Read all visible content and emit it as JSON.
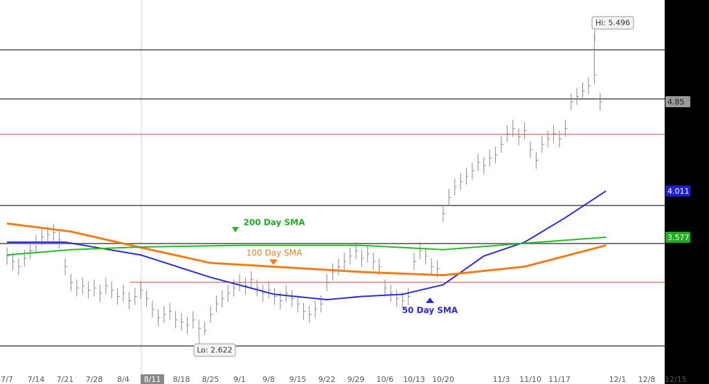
{
  "chart_data": {
    "type": "ohlc",
    "high": [
      3.48,
      3.43,
      3.38,
      3.46,
      3.53,
      3.6,
      3.66,
      3.68,
      3.7,
      3.63,
      3.38,
      3.23,
      3.18,
      3.2,
      3.16,
      3.18,
      3.13,
      3.2,
      3.16,
      3.1,
      3.13,
      3.06,
      3.1,
      3.16,
      3.08,
      2.98,
      2.9,
      2.93,
      2.96,
      2.88,
      2.86,
      2.83,
      2.88,
      2.8,
      2.78,
      2.93,
      3.03,
      3.08,
      3.13,
      3.18,
      3.23,
      3.2,
      3.26,
      3.18,
      3.13,
      3.16,
      3.1,
      3.06,
      3.13,
      3.08,
      3.03,
      2.96,
      2.93,
      2.98,
      3.03,
      3.23,
      3.33,
      3.38,
      3.43,
      3.48,
      3.53,
      3.46,
      3.5,
      3.43,
      3.38,
      3.18,
      3.13,
      3.08,
      3.06,
      3.1,
      3.43,
      3.53,
      3.48,
      3.38,
      3.36,
      3.88,
      4.03,
      4.13,
      4.18,
      4.23,
      4.28,
      4.36,
      4.33,
      4.4,
      4.43,
      4.53,
      4.63,
      4.68,
      4.6,
      4.66,
      4.48,
      4.38,
      4.53,
      4.58,
      4.63,
      4.58,
      4.68,
      4.93,
      4.98,
      5.03,
      5.08,
      5.496,
      4.93
    ],
    "low": [
      3.32,
      3.27,
      3.22,
      3.3,
      3.37,
      3.44,
      3.5,
      3.52,
      3.54,
      3.47,
      3.22,
      3.07,
      3.02,
      3.04,
      3.0,
      3.02,
      2.97,
      3.04,
      3.0,
      2.94,
      2.97,
      2.9,
      2.94,
      3.0,
      2.92,
      2.82,
      2.74,
      2.77,
      2.8,
      2.72,
      2.7,
      2.67,
      2.72,
      2.622,
      2.66,
      2.77,
      2.87,
      2.92,
      2.97,
      3.02,
      3.07,
      3.04,
      3.1,
      3.02,
      2.97,
      3.0,
      2.94,
      2.9,
      2.97,
      2.92,
      2.87,
      2.8,
      2.77,
      2.82,
      2.87,
      3.07,
      3.17,
      3.22,
      3.27,
      3.32,
      3.37,
      3.3,
      3.34,
      3.27,
      3.22,
      3.02,
      2.97,
      2.92,
      2.9,
      2.94,
      3.27,
      3.37,
      3.32,
      3.22,
      3.2,
      3.72,
      3.87,
      3.97,
      4.02,
      4.07,
      4.12,
      4.2,
      4.17,
      4.24,
      4.27,
      4.37,
      4.47,
      4.52,
      4.44,
      4.5,
      4.32,
      4.22,
      4.37,
      4.42,
      4.47,
      4.42,
      4.52,
      4.77,
      4.82,
      4.87,
      4.92,
      5.02,
      4.77
    ],
    "close": [
      3.4,
      3.35,
      3.3,
      3.38,
      3.45,
      3.52,
      3.58,
      3.6,
      3.62,
      3.55,
      3.3,
      3.15,
      3.1,
      3.12,
      3.08,
      3.1,
      3.05,
      3.12,
      3.08,
      3.02,
      3.05,
      2.98,
      3.02,
      3.08,
      3.0,
      2.9,
      2.82,
      2.85,
      2.88,
      2.8,
      2.78,
      2.75,
      2.8,
      2.72,
      2.7,
      2.85,
      2.95,
      3.0,
      3.05,
      3.1,
      3.15,
      3.12,
      3.18,
      3.1,
      3.05,
      3.08,
      3.02,
      2.98,
      3.05,
      3.0,
      2.95,
      2.88,
      2.85,
      2.9,
      2.95,
      3.15,
      3.25,
      3.3,
      3.35,
      3.4,
      3.45,
      3.38,
      3.42,
      3.35,
      3.3,
      3.1,
      3.05,
      3.0,
      2.98,
      3.02,
      3.35,
      3.45,
      3.4,
      3.3,
      3.28,
      3.8,
      3.95,
      4.05,
      4.1,
      4.15,
      4.2,
      4.28,
      4.25,
      4.32,
      4.35,
      4.45,
      4.55,
      4.6,
      4.52,
      4.58,
      4.4,
      4.3,
      4.45,
      4.5,
      4.55,
      4.5,
      4.6,
      4.85,
      4.9,
      4.95,
      5.0,
      5.1,
      4.85
    ],
    "bar_color": "#888888",
    "series": [
      {
        "name": "50 Day SMA",
        "color": "#2a2ad6",
        "x": [
          0,
          10,
          23,
          35,
          46,
          55,
          61,
          68,
          75,
          82,
          89,
          96,
          103
        ],
        "values": [
          3.53,
          3.53,
          3.41,
          3.2,
          3.04,
          2.99,
          3.02,
          3.04,
          3.13,
          3.4,
          3.53,
          3.76,
          4.011
        ]
      },
      {
        "name": "100  Day SMA",
        "color": "#f07d1a",
        "x": [
          0,
          11,
          23,
          35,
          49,
          61,
          75,
          89,
          103
        ],
        "values": [
          3.706,
          3.63,
          3.48,
          3.335,
          3.29,
          3.25,
          3.22,
          3.3,
          3.5
        ]
      },
      {
        "name": "200 Day SMA",
        "color": "#22bb22",
        "x": [
          0,
          11,
          23,
          40,
          61,
          75,
          89,
          103
        ],
        "values": [
          3.41,
          3.46,
          3.485,
          3.5,
          3.5,
          3.46,
          3.52,
          3.577
        ]
      }
    ],
    "levels": [
      {
        "value": 5.338,
        "color": "#777777"
      },
      {
        "value": 4.876,
        "color": "#777777"
      },
      {
        "value": 4.544,
        "color": "#d04040"
      },
      {
        "value": 3.875,
        "color": "#777777"
      },
      {
        "value": 3.517,
        "color": "#777777"
      },
      {
        "value": 3.153,
        "color": "#d04040"
      },
      {
        "value": 2.555,
        "color": "#777777"
      }
    ],
    "price_tags": [
      {
        "value": 4.85,
        "color": "#9a9a9a"
      },
      {
        "value": 4.011,
        "color": "#2020d0"
      },
      {
        "value": 3.577,
        "color": "#22aa22"
      }
    ],
    "annotations": [
      "Hi: 5.496",
      "Lo: 2.622"
    ],
    "xlim": [
      -1.2,
      113.1
    ],
    "ylim": [
      2.36,
      5.806
    ],
    "xticks": [
      {
        "value": 0,
        "label": "7/7"
      },
      {
        "value": 5,
        "label": "7/14"
      },
      {
        "value": 10,
        "label": "7/21"
      },
      {
        "value": 15,
        "label": "7/28"
      },
      {
        "value": 20,
        "label": "8/4"
      },
      {
        "value": 25,
        "label": "8/11"
      },
      {
        "value": 30,
        "label": "8/18"
      },
      {
        "value": 35,
        "label": "8/25"
      },
      {
        "value": 40,
        "label": "9/1"
      },
      {
        "value": 45,
        "label": "9/8"
      },
      {
        "value": 50,
        "label": "9/15"
      },
      {
        "value": 55,
        "label": "9/22"
      },
      {
        "value": 60,
        "label": "9/29"
      },
      {
        "value": 65,
        "label": "10/6"
      },
      {
        "value": 70,
        "label": "10/13"
      },
      {
        "value": 75,
        "label": "10/20"
      },
      {
        "value": 85,
        "label": "11/3"
      },
      {
        "value": 90,
        "label": "11/10"
      },
      {
        "value": 95,
        "label": "11/17"
      },
      {
        "value": 105,
        "label": "12/1"
      },
      {
        "value": 110,
        "label": "12/8"
      },
      {
        "value": 115,
        "label": "12/15"
      }
    ]
  }
}
